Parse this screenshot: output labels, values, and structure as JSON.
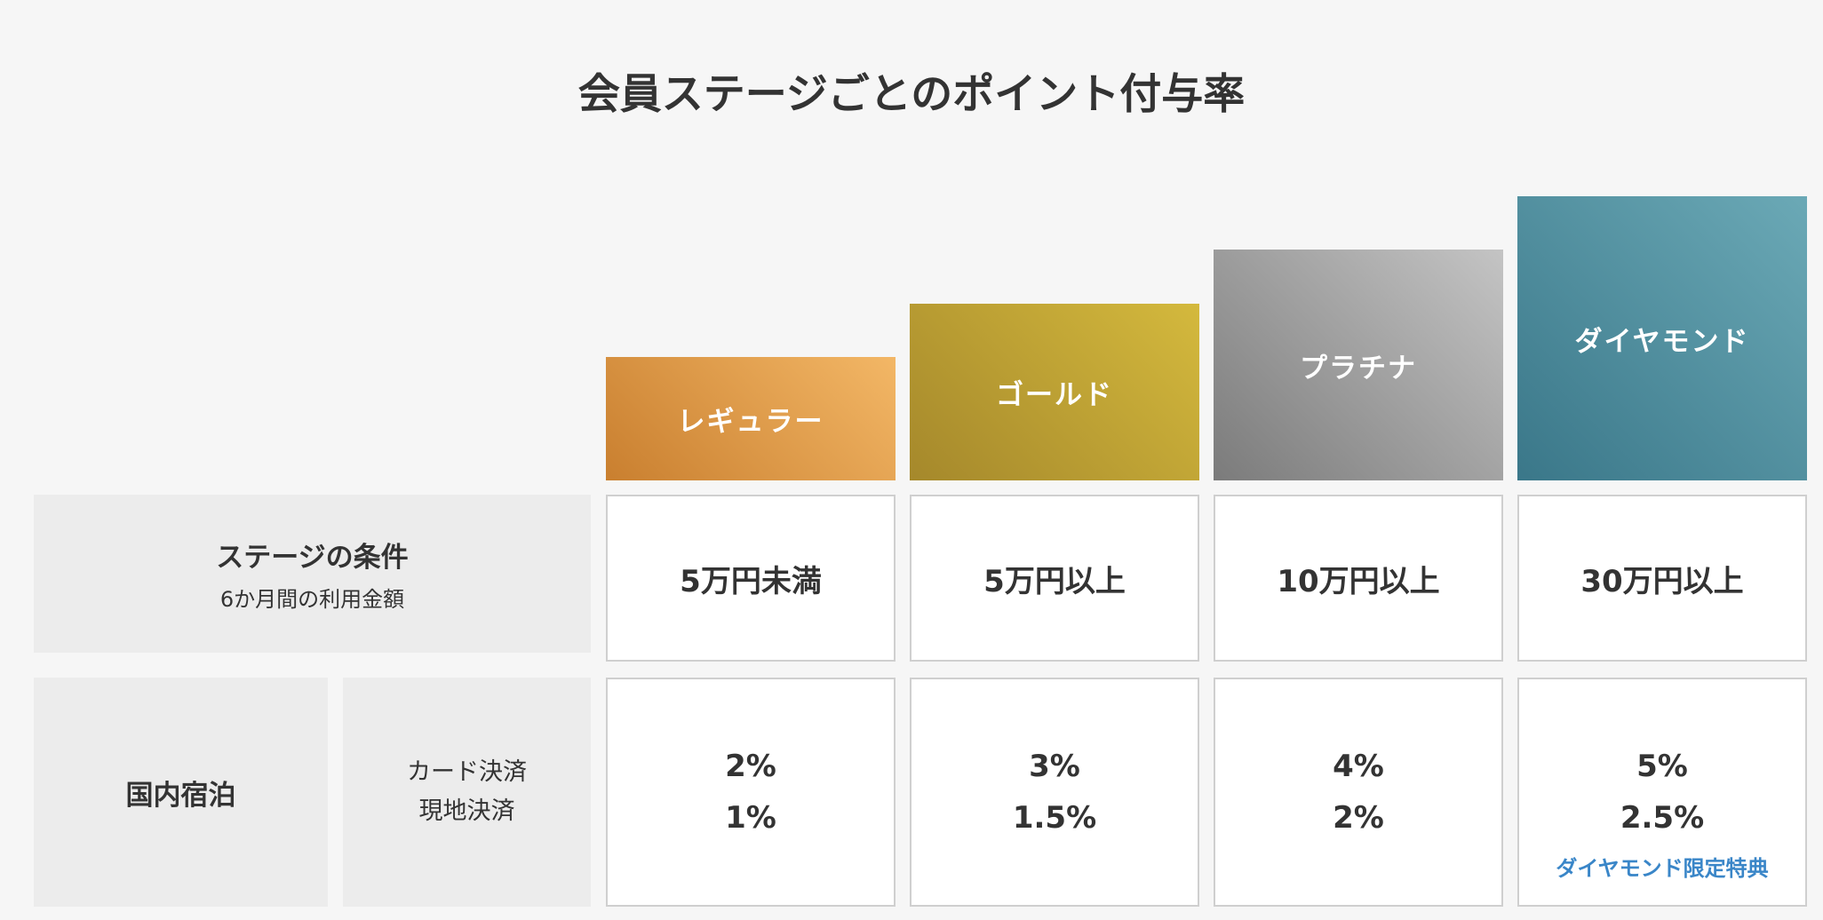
{
  "title": "会員ステージごとのポイント付与率",
  "conditions": {
    "label": "ステージの条件",
    "sublabel": "6か月間の利用金額"
  },
  "domestic": {
    "label": "国内宿泊",
    "methods": [
      "カード決済",
      "現地決済"
    ]
  },
  "stages": [
    {
      "name": "レギュラー",
      "condition": "5万円未満",
      "card": "2%",
      "local": "1%"
    },
    {
      "name": "ゴールド",
      "condition": "5万円以上",
      "card": "3%",
      "local": "1.5%"
    },
    {
      "name": "プラチナ",
      "condition": "10万円以上",
      "card": "4%",
      "local": "2%"
    },
    {
      "name": "ダイヤモンド",
      "condition": "30万円以上",
      "card": "5%",
      "local": "2.5%",
      "note": "ダイヤモンド限定特典"
    }
  ]
}
